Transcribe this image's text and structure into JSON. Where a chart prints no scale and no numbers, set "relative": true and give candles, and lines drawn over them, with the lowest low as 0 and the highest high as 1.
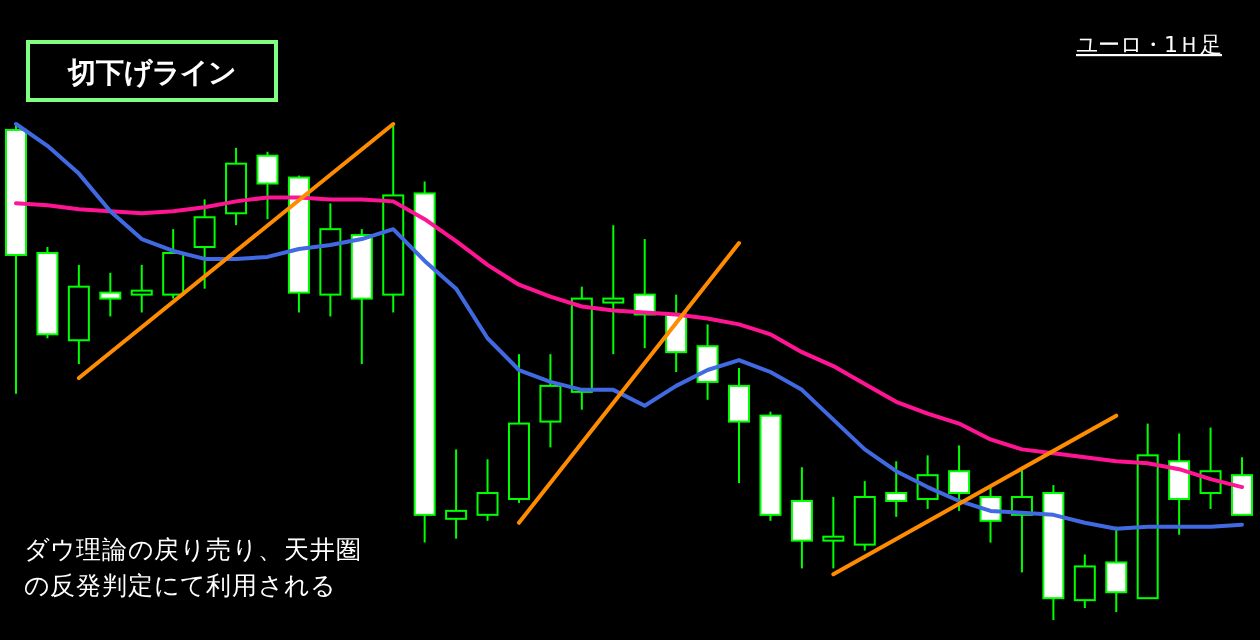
{
  "chart_data": {
    "type": "candlestick",
    "title": "切下げライン",
    "annotations": [
      "ユーロ・1Ｈ足",
      "ダウ理論の戻り売り、天井圏",
      "の反発判定にて利用される"
    ],
    "relative": true,
    "categories": [
      null,
      null,
      null,
      null,
      null,
      null,
      null,
      null,
      null,
      null,
      null,
      null,
      null,
      null,
      null,
      null,
      null,
      null,
      null,
      null,
      null,
      null,
      null,
      null,
      null,
      null,
      null,
      null,
      null,
      null,
      null,
      null,
      null,
      null,
      null,
      null,
      null,
      null,
      null,
      null
    ],
    "ohlc": [
      [
        0.988,
        1,
        0.456,
        0.736
      ],
      [
        0.74,
        0.752,
        0.568,
        0.576
      ],
      [
        0.564,
        0.716,
        0.516,
        0.672
      ],
      [
        0.66,
        0.7,
        0.612,
        0.648
      ],
      [
        0.656,
        0.716,
        0.62,
        0.664
      ],
      [
        0.656,
        0.788,
        0.648,
        0.74
      ],
      [
        0.752,
        0.848,
        0.668,
        0.812
      ],
      [
        0.82,
        0.952,
        0.796,
        0.92
      ],
      [
        0.936,
        0.944,
        0.808,
        0.88
      ],
      [
        0.892,
        0.896,
        0.62,
        0.66
      ],
      [
        0.656,
        0.84,
        0.612,
        0.788
      ],
      [
        0.776,
        0.788,
        0.516,
        0.648
      ],
      [
        0.656,
        1,
        0.62,
        0.856
      ],
      [
        0.86,
        0.884,
        0.156,
        0.212
      ],
      [
        0.204,
        0.344,
        0.164,
        0.22
      ],
      [
        0.212,
        0.324,
        0.2,
        0.256
      ],
      [
        0.244,
        0.536,
        0.236,
        0.396
      ],
      [
        0.4,
        0.536,
        0.348,
        0.472
      ],
      [
        0.46,
        0.672,
        0.424,
        0.648
      ],
      [
        0.64,
        0.796,
        0.536,
        0.648
      ],
      [
        0.656,
        0.768,
        0.548,
        0.616
      ],
      [
        0.616,
        0.656,
        0.5,
        0.54
      ],
      [
        0.552,
        0.596,
        0.444,
        0.48
      ],
      [
        0.472,
        0.508,
        0.276,
        0.4
      ],
      [
        0.412,
        0.42,
        0.2,
        0.212
      ],
      [
        0.24,
        0.308,
        0.104,
        0.16
      ],
      [
        0.16,
        0.248,
        0.104,
        0.168
      ],
      [
        0.152,
        0.28,
        0.14,
        0.248
      ],
      [
        0.256,
        0.32,
        0.208,
        0.24
      ],
      [
        0.244,
        0.332,
        0.224,
        0.292
      ],
      [
        0.3,
        0.352,
        0.22,
        0.256
      ],
      [
        0.248,
        0.272,
        0.156,
        0.2
      ],
      [
        0.212,
        0.308,
        0.096,
        0.248
      ],
      [
        0.256,
        0.272,
        0,
        0.044
      ],
      [
        0.04,
        0.132,
        0.024,
        0.108
      ],
      [
        0.116,
        0.188,
        0.016,
        0.056
      ],
      [
        0.044,
        0.396,
        0.044,
        0.332
      ],
      [
        0.32,
        0.376,
        0.172,
        0.244
      ],
      [
        0.256,
        0.388,
        0.224,
        0.3
      ],
      [
        0.292,
        0.328,
        0.212,
        0.212
      ]
    ],
    "series": [
      {
        "type": "line",
        "color": "#ff1493",
        "values": [
          0.84,
          0.836,
          0.828,
          0.824,
          0.82,
          0.824,
          0.832,
          0.844,
          0.852,
          0.852,
          0.848,
          0.848,
          0.844,
          0.808,
          0.764,
          0.716,
          0.676,
          0.652,
          0.632,
          0.624,
          0.62,
          0.616,
          0.608,
          0.596,
          0.576,
          0.54,
          0.512,
          0.476,
          0.44,
          0.416,
          0.396,
          0.364,
          0.344,
          0.336,
          0.328,
          0.32,
          0.316,
          0.304,
          0.284,
          0.268
        ]
      },
      {
        "type": "line",
        "color": "#4169e1",
        "values": [
          1.0,
          0.956,
          0.9,
          0.824,
          0.768,
          0.744,
          0.728,
          0.728,
          0.732,
          0.748,
          0.756,
          0.768,
          0.788,
          0.724,
          0.668,
          0.568,
          0.504,
          0.48,
          0.464,
          0.464,
          0.432,
          0.472,
          0.504,
          0.524,
          0.5,
          0.464,
          0.404,
          0.344,
          0.3,
          0.268,
          0.24,
          0.22,
          0.216,
          0.212,
          0.196,
          0.184,
          0.188,
          0.188,
          0.188,
          0.192
        ]
      },
      {
        "type": "line",
        "color": "#ff8c00",
        "values": [
          null,
          null,
          0.488,
          null,
          null,
          null,
          null,
          null,
          null,
          null,
          null,
          null,
          1.0,
          null,
          null,
          null,
          null,
          null,
          null,
          null,
          null,
          null,
          null,
          null,
          null,
          null,
          null,
          null,
          null,
          null,
          null,
          null,
          null,
          null,
          null,
          null,
          null,
          null,
          null,
          null
        ]
      },
      {
        "type": "line",
        "color": "#ff8c00",
        "values": [
          null,
          null,
          null,
          null,
          null,
          null,
          null,
          null,
          null,
          null,
          null,
          null,
          null,
          null,
          null,
          null,
          0.196,
          null,
          null,
          null,
          null,
          null,
          null,
          0.76,
          null,
          null,
          null,
          null,
          null,
          null,
          null,
          null,
          null,
          null,
          null,
          null,
          null,
          null,
          null,
          null
        ]
      },
      {
        "type": "line",
        "color": "#ff8c00",
        "values": [
          null,
          null,
          null,
          null,
          null,
          null,
          null,
          null,
          null,
          null,
          null,
          null,
          null,
          null,
          null,
          null,
          null,
          null,
          null,
          null,
          null,
          null,
          null,
          null,
          null,
          null,
          0.092,
          null,
          null,
          null,
          null,
          null,
          null,
          null,
          null,
          0.412,
          null,
          null,
          null,
          null
        ]
      }
    ]
  }
}
